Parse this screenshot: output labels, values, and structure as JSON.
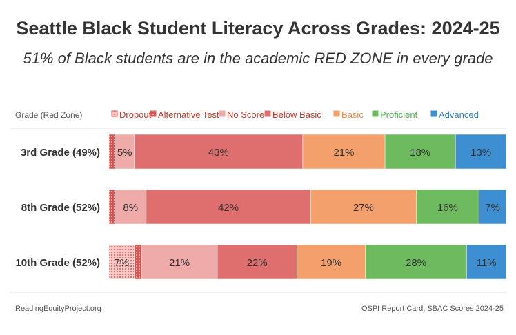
{
  "title": "Seattle Black Student Literacy Across Grades: 2024-25",
  "subtitle": "51% of Black students are in the academic RED ZONE in every grade",
  "footer_left": "ReadingEquityProject.org",
  "footer_right": "OSPI Report Card, SBAC Scores 2024-25",
  "chart_data": {
    "type": "bar",
    "orientation": "horizontal-stacked-100",
    "legend_title": "Grade (Red Zone)",
    "legend_placement": "top",
    "categories": [
      "3rd Grade (49%)",
      "8th Grade (52%)",
      "10th Grade (52%)"
    ],
    "series": [
      {
        "name": "Dropout",
        "color": "#f2b8b8",
        "text_color": "#c0392b",
        "pattern": true,
        "values": [
          0,
          0,
          7
        ],
        "labels": [
          "",
          "",
          "7%"
        ]
      },
      {
        "name": "Alternative Test",
        "color": "#d9534f",
        "text_color": "#c0392b",
        "pattern": true,
        "values": [
          1.5,
          1.5,
          2
        ],
        "labels": [
          "",
          "",
          ""
        ]
      },
      {
        "name": "No Score",
        "color": "#efaaaa",
        "text_color": "#c0392b",
        "values": [
          5,
          8,
          21
        ],
        "labels": [
          "5%",
          "8%",
          "21%"
        ]
      },
      {
        "name": "Below Basic",
        "color": "#df6f6f",
        "text_color": "#c0392b",
        "values": [
          43,
          42,
          22
        ],
        "labels": [
          "43%",
          "42%",
          "22%"
        ]
      },
      {
        "name": "Basic",
        "color": "#f4a06c",
        "text_color": "#f08a4b",
        "values": [
          21,
          27,
          19
        ],
        "labels": [
          "21%",
          "27%",
          "19%"
        ]
      },
      {
        "name": "Proficient",
        "color": "#6dbb5e",
        "text_color": "#4caf50",
        "values": [
          18,
          16,
          28
        ],
        "labels": [
          "18%",
          "16%",
          "28%"
        ]
      },
      {
        "name": "Advanced",
        "color": "#3d8fd1",
        "text_color": "#2f7fc1",
        "values": [
          13,
          7,
          11
        ],
        "labels": [
          "13%",
          "7%",
          "11%"
        ]
      }
    ]
  }
}
